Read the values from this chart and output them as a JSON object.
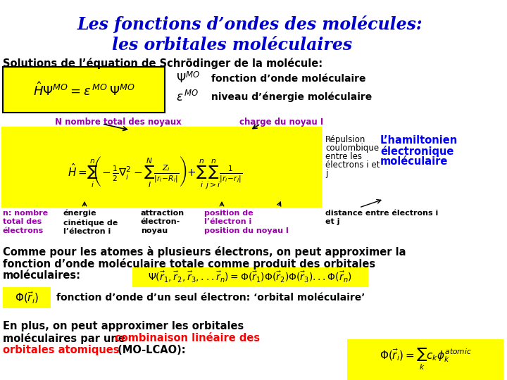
{
  "title_line1": "Les fonctions d’ondes des molécules:",
  "title_line2": "les orbitales moléculaires",
  "title_color": "#0000CC",
  "background_color": "#FFFFFF",
  "subtitle": "Solutions de l’équation de Schrödinger de la molécule:",
  "yellow_bg": "#FFFF00",
  "purple_color": "#9900AA",
  "red_color": "#FF0000",
  "blue_bold": "#0000FF",
  "black": "#000000",
  "gray_bg": "#C0C0C0"
}
